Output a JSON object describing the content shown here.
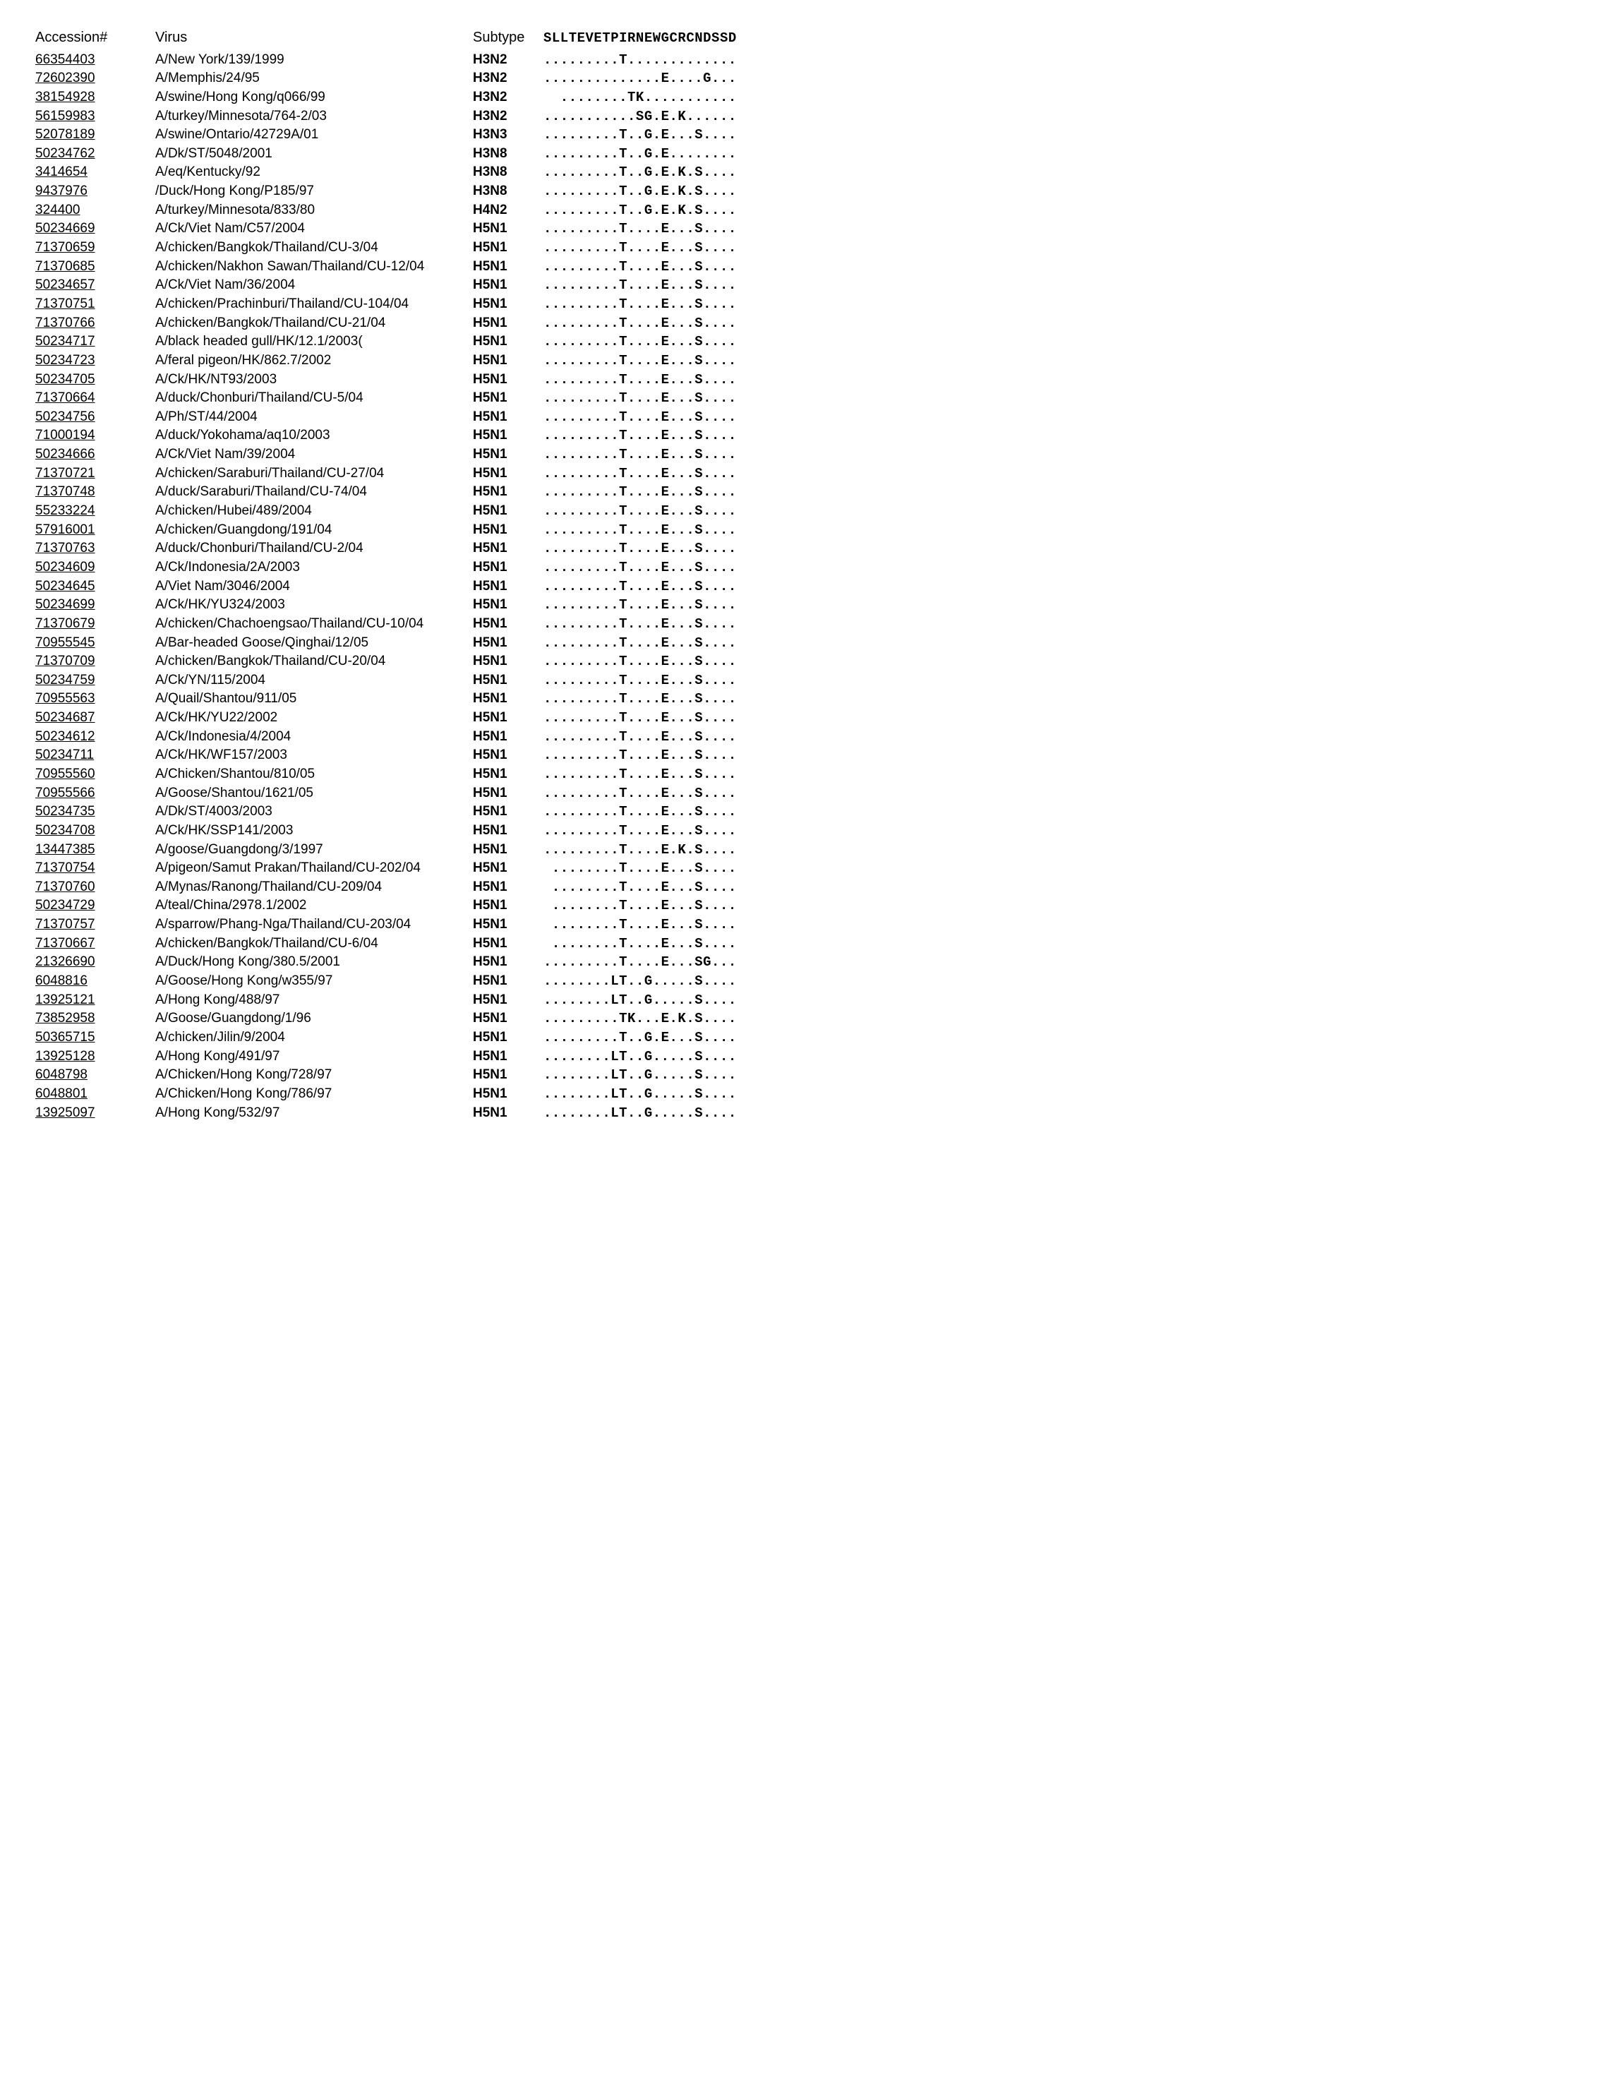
{
  "headers": {
    "accession": "Accession#",
    "virus": "Virus",
    "subtype": "Subtype",
    "sequence": "SLLTEVETPIRNEWGCRCNDSSD"
  },
  "rows": [
    {
      "accession": "66354403",
      "virus": "A/New York/139/1999",
      "subtype": "H3N2",
      "seq": ".........T............."
    },
    {
      "accession": "72602390",
      "virus": "A/Memphis/24/95",
      "subtype": "H3N2",
      "seq": "..............E....G..."
    },
    {
      "accession": "38154928",
      "virus": "A/swine/Hong Kong/q066/99",
      "subtype": "H3N2",
      "seq": "  ........TK..........."
    },
    {
      "accession": "56159983",
      "virus": "A/turkey/Minnesota/764-2/03",
      "subtype": "H3N2",
      "seq": "...........SG.E.K......"
    },
    {
      "accession": "52078189",
      "virus": "A/swine/Ontario/42729A/01",
      "subtype": "H3N3",
      "seq": ".........T..G.E...S...."
    },
    {
      "accession": "50234762",
      "virus": "A/Dk/ST/5048/2001",
      "subtype": "H3N8",
      "seq": ".........T..G.E........"
    },
    {
      "accession": "3414654",
      "virus": "A/eq/Kentucky/92",
      "subtype": "H3N8",
      "seq": ".........T..G.E.K.S...."
    },
    {
      "accession": "9437976",
      "virus": "/Duck/Hong Kong/P185/97",
      "subtype": "H3N8",
      "seq": ".........T..G.E.K.S...."
    },
    {
      "accession": "324400",
      "virus": "A/turkey/Minnesota/833/80",
      "subtype": "H4N2",
      "seq": ".........T..G.E.K.S...."
    },
    {
      "accession": "50234669",
      "virus": "A/Ck/Viet Nam/C57/2004",
      "subtype": "H5N1",
      "seq": ".........T....E...S...."
    },
    {
      "accession": "71370659",
      "virus": "A/chicken/Bangkok/Thailand/CU-3/04",
      "subtype": "H5N1",
      "seq": ".........T....E...S...."
    },
    {
      "accession": "71370685",
      "virus": "A/chicken/Nakhon Sawan/Thailand/CU-12/04",
      "subtype": "H5N1",
      "seq": ".........T....E...S...."
    },
    {
      "accession": "50234657",
      "virus": "A/Ck/Viet Nam/36/2004",
      "subtype": "H5N1",
      "seq": ".........T....E...S...."
    },
    {
      "accession": "71370751",
      "virus": "A/chicken/Prachinburi/Thailand/CU-104/04",
      "subtype": "H5N1",
      "seq": ".........T....E...S...."
    },
    {
      "accession": "71370766",
      "virus": "A/chicken/Bangkok/Thailand/CU-21/04",
      "subtype": "H5N1",
      "seq": ".........T....E...S...."
    },
    {
      "accession": "50234717",
      "virus": "A/black headed gull/HK/12.1/2003(",
      "subtype": "H5N1",
      "seq": ".........T....E...S...."
    },
    {
      "accession": "50234723",
      "virus": "A/feral pigeon/HK/862.7/2002",
      "subtype": "H5N1",
      "seq": ".........T....E...S...."
    },
    {
      "accession": "50234705",
      "virus": "A/Ck/HK/NT93/2003",
      "subtype": "H5N1",
      "seq": ".........T....E...S...."
    },
    {
      "accession": "71370664",
      "virus": "A/duck/Chonburi/Thailand/CU-5/04",
      "subtype": "H5N1",
      "seq": ".........T....E...S...."
    },
    {
      "accession": "50234756",
      "virus": "A/Ph/ST/44/2004",
      "subtype": "H5N1",
      "seq": ".........T....E...S...."
    },
    {
      "accession": "71000194",
      "virus": "A/duck/Yokohama/aq10/2003",
      "subtype": "H5N1",
      "seq": ".........T....E...S...."
    },
    {
      "accession": "50234666",
      "virus": "A/Ck/Viet Nam/39/2004",
      "subtype": "H5N1",
      "seq": ".........T....E...S...."
    },
    {
      "accession": "71370721",
      "virus": "A/chicken/Saraburi/Thailand/CU-27/04",
      "subtype": "H5N1",
      "seq": ".........T....E...S...."
    },
    {
      "accession": "71370748",
      "virus": "A/duck/Saraburi/Thailand/CU-74/04",
      "subtype": "H5N1",
      "seq": ".........T....E...S...."
    },
    {
      "accession": "55233224",
      "virus": "A/chicken/Hubei/489/2004",
      "subtype": "H5N1",
      "seq": ".........T....E...S...."
    },
    {
      "accession": "57916001",
      "virus": "A/chicken/Guangdong/191/04",
      "subtype": "H5N1",
      "seq": ".........T....E...S...."
    },
    {
      "accession": "71370763",
      "virus": "A/duck/Chonburi/Thailand/CU-2/04",
      "subtype": "H5N1",
      "seq": ".........T....E...S...."
    },
    {
      "accession": "50234609",
      "virus": "A/Ck/Indonesia/2A/2003",
      "subtype": "H5N1",
      "seq": ".........T....E...S...."
    },
    {
      "accession": "50234645",
      "virus": "A/Viet Nam/3046/2004",
      "subtype": "H5N1",
      "seq": ".........T....E...S...."
    },
    {
      "accession": "50234699",
      "virus": "A/Ck/HK/YU324/2003",
      "subtype": "H5N1",
      "seq": ".........T....E...S...."
    },
    {
      "accession": "71370679",
      "virus": "A/chicken/Chachoengsao/Thailand/CU-10/04",
      "subtype": "H5N1",
      "seq": ".........T....E...S...."
    },
    {
      "accession": "70955545",
      "virus": "A/Bar-headed Goose/Qinghai/12/05",
      "subtype": "H5N1",
      "seq": ".........T....E...S...."
    },
    {
      "accession": "71370709",
      "virus": "A/chicken/Bangkok/Thailand/CU-20/04",
      "subtype": "H5N1",
      "seq": ".........T....E...S...."
    },
    {
      "accession": "50234759",
      "virus": "A/Ck/YN/115/2004",
      "subtype": "H5N1",
      "seq": ".........T....E...S...."
    },
    {
      "accession": "70955563",
      "virus": "A/Quail/Shantou/911/05",
      "subtype": "H5N1",
      "seq": ".........T....E...S...."
    },
    {
      "accession": "50234687",
      "virus": "A/Ck/HK/YU22/2002",
      "subtype": "H5N1",
      "seq": ".........T....E...S...."
    },
    {
      "accession": "50234612",
      "virus": "A/Ck/Indonesia/4/2004",
      "subtype": "H5N1",
      "seq": ".........T....E...S...."
    },
    {
      "accession": "50234711",
      "virus": "A/Ck/HK/WF157/2003",
      "subtype": "H5N1",
      "seq": ".........T....E...S...."
    },
    {
      "accession": "70955560",
      "virus": "A/Chicken/Shantou/810/05",
      "subtype": "H5N1",
      "seq": ".........T....E...S...."
    },
    {
      "accession": "70955566",
      "virus": "A/Goose/Shantou/1621/05",
      "subtype": "H5N1",
      "seq": ".........T....E...S...."
    },
    {
      "accession": "50234735",
      "virus": "A/Dk/ST/4003/2003",
      "subtype": "H5N1",
      "seq": ".........T....E...S...."
    },
    {
      "accession": "50234708",
      "virus": "A/Ck/HK/SSP141/2003",
      "subtype": "H5N1",
      "seq": ".........T....E...S...."
    },
    {
      "accession": "13447385",
      "virus": "A/goose/Guangdong/3/1997",
      "subtype": "H5N1",
      "seq": ".........T....E.K.S...."
    },
    {
      "accession": "71370754",
      "virus": "A/pigeon/Samut Prakan/Thailand/CU-202/04",
      "subtype": "H5N1",
      "seq": " ........T....E...S...."
    },
    {
      "accession": "71370760",
      "virus": "A/Mynas/Ranong/Thailand/CU-209/04",
      "subtype": "H5N1",
      "seq": " ........T....E...S...."
    },
    {
      "accession": "50234729",
      "virus": "A/teal/China/2978.1/2002",
      "subtype": "H5N1",
      "seq": " ........T....E...S...."
    },
    {
      "accession": "71370757",
      "virus": "A/sparrow/Phang-Nga/Thailand/CU-203/04",
      "subtype": "H5N1",
      "seq": " ........T....E...S...."
    },
    {
      "accession": "71370667",
      "virus": "A/chicken/Bangkok/Thailand/CU-6/04",
      "subtype": "H5N1",
      "seq": " ........T....E...S...."
    },
    {
      "accession": "21326690",
      "virus": "A/Duck/Hong Kong/380.5/2001",
      "subtype": "H5N1",
      "seq": ".........T....E...SG..."
    },
    {
      "accession": "6048816",
      "virus": "A/Goose/Hong Kong/w355/97",
      "subtype": "H5N1",
      "seq": "........LT..G.....S...."
    },
    {
      "accession": "13925121",
      "virus": "A/Hong Kong/488/97",
      "subtype": "H5N1",
      "seq": "........LT..G.....S...."
    },
    {
      "accession": "73852958",
      "virus": "A/Goose/Guangdong/1/96",
      "subtype": "H5N1",
      "seq": ".........TK...E.K.S...."
    },
    {
      "accession": "50365715",
      "virus": "A/chicken/Jilin/9/2004",
      "subtype": "H5N1",
      "seq": ".........T..G.E...S...."
    },
    {
      "accession": "13925128",
      "virus": "A/Hong Kong/491/97",
      "subtype": "H5N1",
      "seq": "........LT..G.....S...."
    },
    {
      "accession": "6048798",
      "virus": "A/Chicken/Hong Kong/728/97",
      "subtype": "H5N1",
      "seq": "........LT..G.....S...."
    },
    {
      "accession": "6048801",
      "virus": "A/Chicken/Hong Kong/786/97",
      "subtype": "H5N1",
      "seq": "........LT..G.....S...."
    },
    {
      "accession": "13925097",
      "virus": "A/Hong Kong/532/97",
      "subtype": "H5N1",
      "seq": "........LT..G.....S...."
    }
  ]
}
